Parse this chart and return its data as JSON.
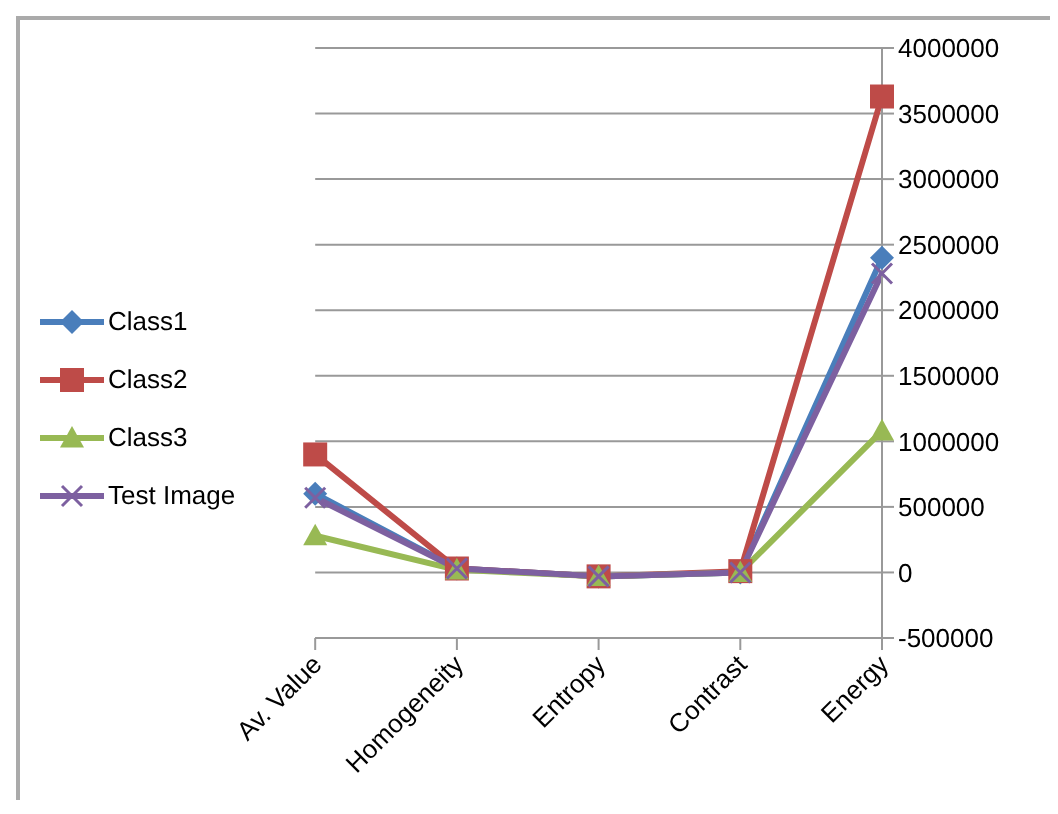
{
  "chart_data": {
    "type": "line",
    "categories": [
      "Av. Value",
      "Homogeneity",
      "Entropy",
      "Contrast",
      "Energy"
    ],
    "series": [
      {
        "name": "Class1",
        "color": "#4a7ebb",
        "marker": "diamond",
        "values": [
          600000,
          30000,
          -30000,
          0,
          2400000
        ]
      },
      {
        "name": "Class2",
        "color": "#be4b48",
        "marker": "square",
        "values": [
          900000,
          30000,
          -30000,
          10000,
          3630000
        ]
      },
      {
        "name": "Class3",
        "color": "#98b954",
        "marker": "triangle",
        "values": [
          280000,
          20000,
          -30000,
          0,
          1080000
        ]
      },
      {
        "name": "Test Image",
        "color": "#7d60a0",
        "marker": "cross",
        "values": [
          570000,
          30000,
          -30000,
          0,
          2280000
        ]
      }
    ],
    "ylim": [
      -500000,
      4000000
    ],
    "yticks": [
      -500000,
      0,
      500000,
      1000000,
      1500000,
      2000000,
      2500000,
      3000000,
      3500000,
      4000000
    ],
    "grid": "y",
    "legend": "left"
  }
}
